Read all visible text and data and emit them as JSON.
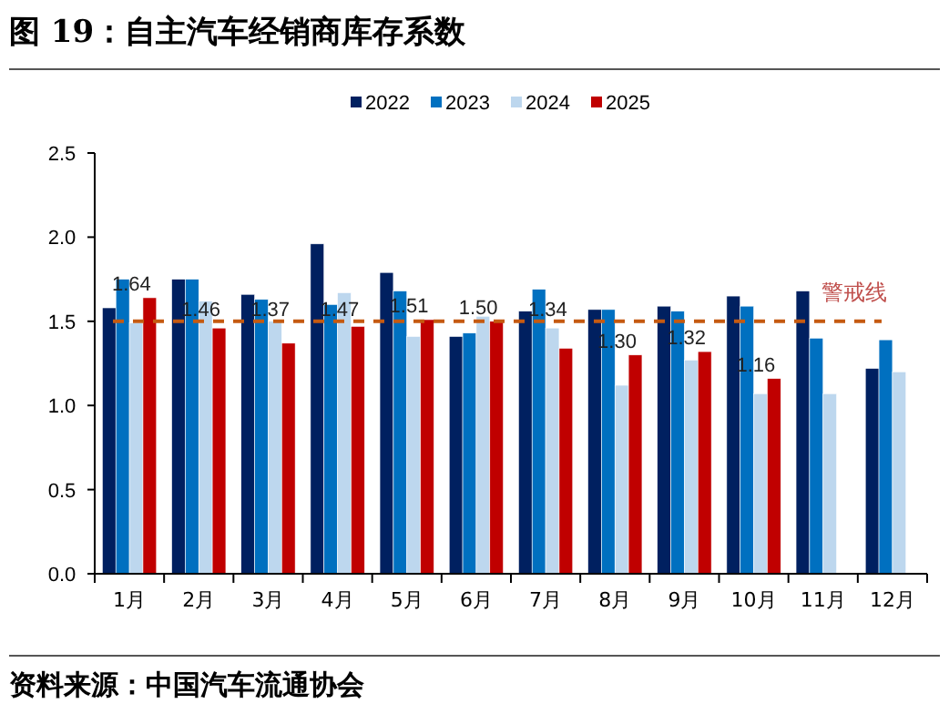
{
  "chart_data": {
    "type": "bar",
    "title": "图 19：自主汽车经销商库存系数",
    "categories": [
      "1月",
      "2月",
      "3月",
      "4月",
      "5月",
      "6月",
      "7月",
      "8月",
      "9月",
      "10月",
      "11月",
      "12月"
    ],
    "series": [
      {
        "name": "2022",
        "color": "#002060",
        "values": [
          1.58,
          1.75,
          1.66,
          1.96,
          1.79,
          1.41,
          1.56,
          1.57,
          1.59,
          1.65,
          1.68,
          1.22
        ]
      },
      {
        "name": "2023",
        "color": "#0070c0",
        "values": [
          1.75,
          1.75,
          1.63,
          1.6,
          1.68,
          1.43,
          1.69,
          1.57,
          1.56,
          1.59,
          1.4,
          1.39
        ]
      },
      {
        "name": "2024",
        "color": "#bdd7ee",
        "values": [
          1.49,
          1.62,
          1.5,
          1.67,
          1.41,
          1.53,
          1.46,
          1.12,
          1.27,
          1.07,
          1.07,
          1.2
        ]
      },
      {
        "name": "2025",
        "color": "#c00000",
        "values": [
          1.64,
          1.46,
          1.37,
          1.47,
          1.51,
          1.5,
          1.34,
          1.3,
          1.32,
          1.16,
          null,
          null
        ],
        "value_labels": [
          "1.64",
          "1.46",
          "1.37",
          "1.47",
          "1.51",
          "1.50",
          "1.34",
          "1.30",
          "1.32",
          "1.16",
          null,
          null
        ]
      }
    ],
    "ylim": [
      0,
      2.5
    ],
    "yticks": [
      {
        "value": 0,
        "label": "0.0"
      },
      {
        "value": 0.5,
        "label": "0.5"
      },
      {
        "value": 1,
        "label": "1.0"
      },
      {
        "value": 1.5,
        "label": "1.5"
      },
      {
        "value": 2,
        "label": "2.0"
      },
      {
        "value": 2.5,
        "label": "2.5"
      }
    ],
    "grid": false,
    "legend": "top",
    "ref_lines": [
      {
        "axis": "y",
        "value": 1.5,
        "label": "警戒线",
        "color": "#c55a11",
        "line_style": "dashed"
      }
    ],
    "annotations": [
      "资料来源：中国汽车流通协会"
    ]
  }
}
